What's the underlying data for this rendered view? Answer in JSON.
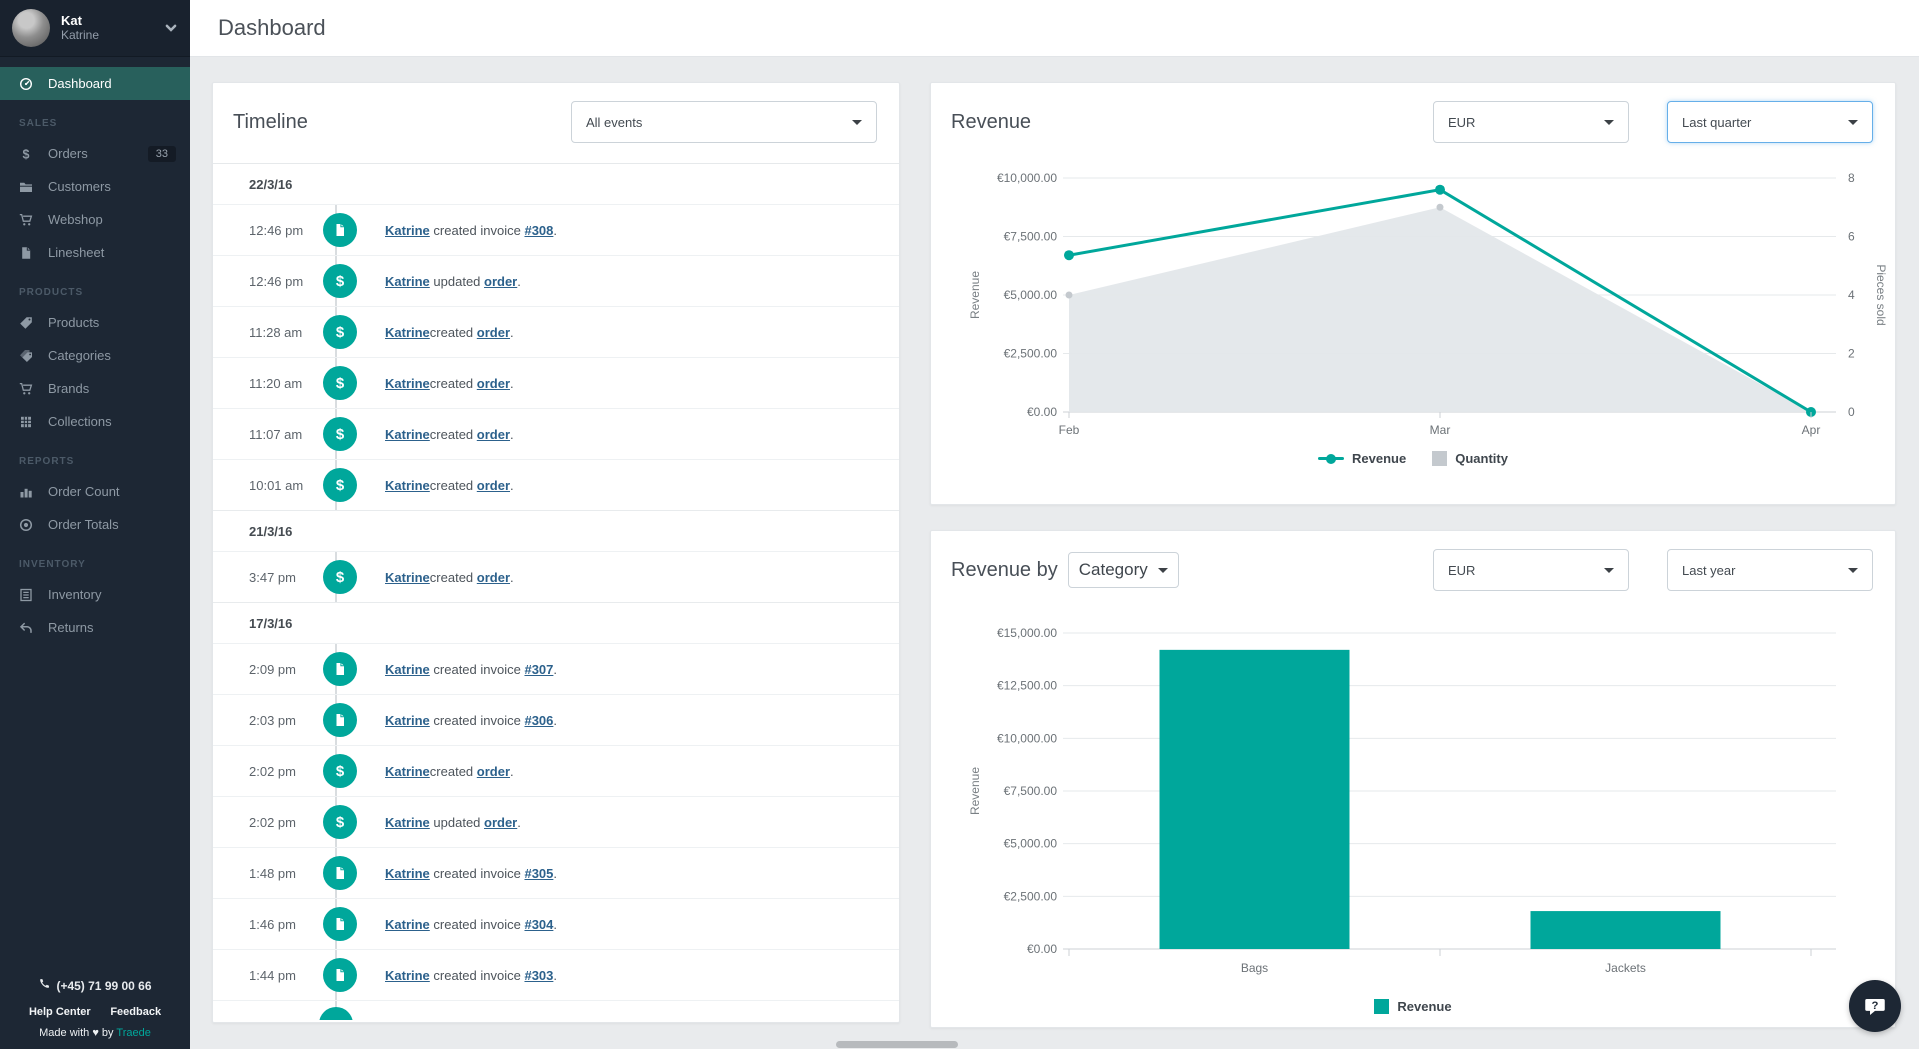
{
  "colors": {
    "accent": "#00a79b",
    "sidebar_bg": "#1d2734",
    "active_item_bg": "#28605c",
    "link": "#2c618c",
    "focus_border": "#66afe9",
    "quantity_gray": "#c4c9ce",
    "area_fill": "#e3e7ea"
  },
  "header": {
    "title": "Dashboard"
  },
  "sidebar": {
    "user": {
      "name": "Kat",
      "subtitle": "Katrine"
    },
    "sections": [
      {
        "label": "",
        "items": [
          {
            "label": "Dashboard",
            "icon": "gauge-icon",
            "active": true
          }
        ]
      },
      {
        "label": "SALES",
        "items": [
          {
            "label": "Orders",
            "icon": "dollar-icon",
            "badge": "33"
          },
          {
            "label": "Customers",
            "icon": "folder-icon"
          },
          {
            "label": "Webshop",
            "icon": "cart-icon"
          },
          {
            "label": "Linesheet",
            "icon": "document-icon"
          }
        ]
      },
      {
        "label": "PRODUCTS",
        "items": [
          {
            "label": "Products",
            "icon": "tag-icon"
          },
          {
            "label": "Categories",
            "icon": "tags-icon"
          },
          {
            "label": "Brands",
            "icon": "cart-icon"
          },
          {
            "label": "Collections",
            "icon": "collections-icon"
          }
        ]
      },
      {
        "label": "REPORTS",
        "items": [
          {
            "label": "Order Count",
            "icon": "bar-chart-icon"
          },
          {
            "label": "Order Totals",
            "icon": "target-icon"
          }
        ]
      },
      {
        "label": "INVENTORY",
        "items": [
          {
            "label": "Inventory",
            "icon": "list-icon"
          },
          {
            "label": "Returns",
            "icon": "return-icon"
          }
        ]
      }
    ],
    "footer": {
      "phone": "(+45) 71 99 00 66",
      "help_label": "Help Center",
      "feedback_label": "Feedback",
      "credit_prefix": "Made with",
      "credit_heart": "♥",
      "credit_mid": "by",
      "credit_brand": "Traede"
    }
  },
  "timeline": {
    "title": "Timeline",
    "filter_value": "All events",
    "has_partial_row": true,
    "groups": [
      {
        "date": "22/3/16",
        "events": [
          {
            "time": "12:46 pm",
            "icon": "invoice",
            "actor": "Katrine",
            "action": " created invoice ",
            "target": "#308",
            "suffix": "."
          },
          {
            "time": "12:46 pm",
            "icon": "order",
            "actor": "Katrine",
            "action": " updated ",
            "target": "order",
            "suffix": "."
          },
          {
            "time": "11:28 am",
            "icon": "order",
            "actor": "Katrine",
            "action": "created ",
            "target": "order",
            "suffix": "."
          },
          {
            "time": "11:20 am",
            "icon": "order",
            "actor": "Katrine",
            "action": "created ",
            "target": "order",
            "suffix": "."
          },
          {
            "time": "11:07 am",
            "icon": "order",
            "actor": "Katrine",
            "action": "created ",
            "target": "order",
            "suffix": "."
          },
          {
            "time": "10:01 am",
            "icon": "order",
            "actor": "Katrine",
            "action": "created ",
            "target": "order",
            "suffix": "."
          }
        ]
      },
      {
        "date": "21/3/16",
        "events": [
          {
            "time": "3:47 pm",
            "icon": "order",
            "actor": "Katrine",
            "action": "created ",
            "target": "order",
            "suffix": "."
          }
        ]
      },
      {
        "date": "17/3/16",
        "events": [
          {
            "time": "2:09 pm",
            "icon": "invoice",
            "actor": "Katrine",
            "action": " created invoice ",
            "target": "#307",
            "suffix": "."
          },
          {
            "time": "2:03 pm",
            "icon": "invoice",
            "actor": "Katrine",
            "action": " created invoice ",
            "target": "#306",
            "suffix": "."
          },
          {
            "time": "2:02 pm",
            "icon": "order",
            "actor": "Katrine",
            "action": "created ",
            "target": "order",
            "suffix": "."
          },
          {
            "time": "2:02 pm",
            "icon": "order",
            "actor": "Katrine",
            "action": " updated ",
            "target": "order",
            "suffix": "."
          },
          {
            "time": "1:48 pm",
            "icon": "invoice",
            "actor": "Katrine",
            "action": " created invoice ",
            "target": "#305",
            "suffix": "."
          },
          {
            "time": "1:46 pm",
            "icon": "invoice",
            "actor": "Katrine",
            "action": " created invoice ",
            "target": "#304",
            "suffix": "."
          },
          {
            "time": "1:44 pm",
            "icon": "invoice",
            "actor": "Katrine",
            "action": " created invoice ",
            "target": "#303",
            "suffix": "."
          }
        ]
      }
    ]
  },
  "revenue_card": {
    "title": "Revenue",
    "currency_value": "EUR",
    "period_value": "Last quarter"
  },
  "revenue_by_card": {
    "title_prefix": "Revenue by",
    "dimension_value": "Category",
    "currency_value": "EUR",
    "period_value": "Last year"
  },
  "floating": {
    "help_glyph": "?"
  },
  "chart_data": [
    {
      "type": "line",
      "title": "Revenue",
      "x": [
        "Feb",
        "Mar",
        "Apr"
      ],
      "series": [
        {
          "name": "Quantity",
          "style": "area",
          "axis": "right",
          "color": "#e3e7ea",
          "marker_color": "#c4c9ce",
          "values": [
            4,
            7,
            0
          ]
        },
        {
          "name": "Revenue",
          "style": "line",
          "axis": "left",
          "color": "#00a79b",
          "values": [
            6700,
            9500,
            0
          ]
        }
      ],
      "left_axis": {
        "label": "Revenue",
        "max": 10000,
        "ticks": [
          0,
          2500,
          5000,
          7500,
          10000
        ],
        "tick_labels": [
          "€0.00",
          "€2,500.00",
          "€5,000.00",
          "€7,500.00",
          "€10,000.00"
        ]
      },
      "right_axis": {
        "label": "Pieces sold",
        "max": 8,
        "ticks": [
          0,
          2,
          4,
          6,
          8
        ],
        "tick_labels": [
          "0",
          "2",
          "4",
          "6",
          "8"
        ]
      },
      "legend": [
        {
          "name": "Revenue",
          "marker": "line",
          "color": "#00a79b"
        },
        {
          "name": "Quantity",
          "marker": "square",
          "color": "#c4c9ce"
        }
      ],
      "grid": true,
      "legend_position": "bottom-center"
    },
    {
      "type": "bar",
      "title": "Revenue by Category",
      "categories": [
        "Bags",
        "Jackets"
      ],
      "series": [
        {
          "name": "Revenue",
          "color": "#00a79b",
          "values": [
            14200,
            1800
          ]
        }
      ],
      "left_axis": {
        "label": "Revenue",
        "max": 15000,
        "ticks": [
          0,
          2500,
          5000,
          7500,
          10000,
          12500,
          15000
        ],
        "tick_labels": [
          "€0.00",
          "€2,500.00",
          "€5,000.00",
          "€7,500.00",
          "€10,000.00",
          "€12,500.00",
          "€15,000.00"
        ]
      },
      "legend": [
        {
          "name": "Revenue",
          "marker": "square",
          "color": "#00a79b"
        }
      ],
      "grid": true,
      "legend_position": "bottom-center"
    }
  ]
}
